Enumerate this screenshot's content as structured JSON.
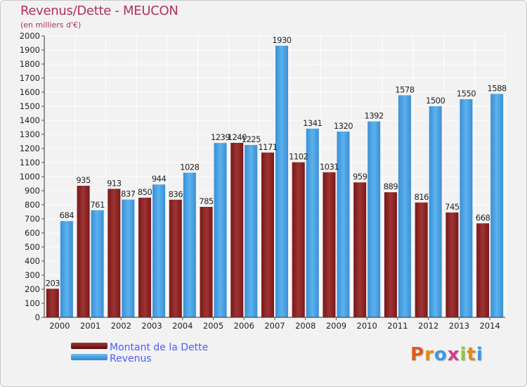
{
  "header": {
    "title": "Revenus/Dette - MEUCON",
    "subtitle": "(en milliers d'€)"
  },
  "chart_data": {
    "type": "bar",
    "title": "Revenus/Dette - MEUCON",
    "subtitle": "(en milliers d'€)",
    "xlabel": "",
    "ylabel": "",
    "ylim": [
      0,
      2000
    ],
    "ytick_step": 100,
    "grid": true,
    "categories": [
      "2000",
      "2001",
      "2002",
      "2003",
      "2004",
      "2005",
      "2006",
      "2007",
      "2008",
      "2009",
      "2010",
      "2011",
      "2012",
      "2013",
      "2014"
    ],
    "series": [
      {
        "name": "Montant de la Dette",
        "color": "#8b1c1c",
        "values": [
          203,
          935,
          913,
          850,
          836,
          785,
          1240,
          1171,
          1102,
          1031,
          959,
          889,
          816,
          745,
          668
        ],
        "labels": [
          "203",
          "935",
          "913",
          "850",
          "836",
          "785",
          "1240",
          "1171",
          "1102",
          "1031",
          "959",
          "889",
          "816",
          "745",
          "668"
        ]
      },
      {
        "name": "Revenus",
        "color": "#3b9ae1",
        "values": [
          684,
          761,
          837,
          944,
          1028,
          1239,
          1225,
          1930,
          1341,
          1320,
          1392,
          1578,
          1500,
          1550,
          1588
        ],
        "labels": [
          "684",
          "761",
          "837",
          "944",
          "1028",
          "1239",
          "1225",
          "1930",
          "1341",
          "1320",
          "1392",
          "1578",
          "1500",
          "1550",
          "1588"
        ]
      }
    ],
    "legend_position": "bottom-left"
  },
  "legend": {
    "items": [
      {
        "label": "Montant de la Dette",
        "color": "#6b0f0f"
      },
      {
        "label": "Revenus",
        "color": "#3b9ae1"
      }
    ]
  },
  "logo": {
    "text": "Proxiti",
    "letters": [
      "P",
      "r",
      "o",
      "x",
      "i",
      "t",
      "i"
    ],
    "colors": [
      "#e05a1a",
      "#e08a1a",
      "#3b9ae1",
      "#d63c8c",
      "#8cc63f",
      "#e08a1a",
      "#3b9ae1"
    ]
  }
}
